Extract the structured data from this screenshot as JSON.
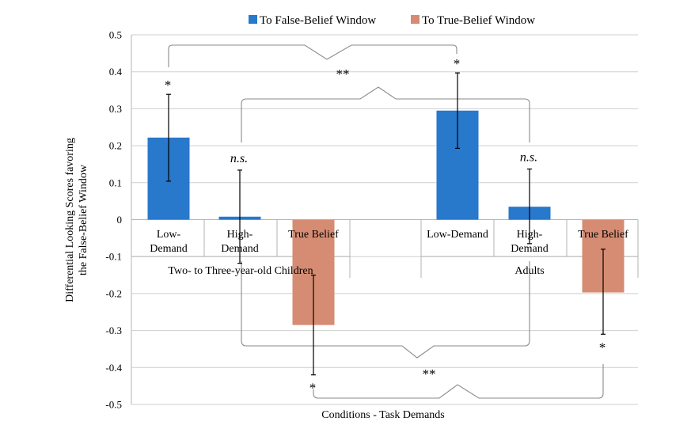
{
  "chart_data": {
    "type": "bar",
    "legend": {
      "placement": "top",
      "entries": [
        {
          "name": "To False-Belief Window",
          "color": "#2878CC"
        },
        {
          "name": "To True-Belief Window",
          "color": "#D58C73"
        }
      ]
    },
    "ylabel_lines": [
      "Differential Looking Scores favoring",
      "the  False-Belief Window"
    ],
    "xlabel": "Conditions  - Task Demands",
    "ylim": [
      -0.5,
      0.5
    ],
    "yticks": [
      "0.5",
      "0.4",
      "0.3",
      "0.2",
      "0.1",
      "0",
      "-0.1",
      "-0.2",
      "-0.3",
      "-0.4",
      "-0.5"
    ],
    "grid": true,
    "groups": [
      {
        "label": "Two- to Three-year-old Children"
      },
      {
        "label": "Adults"
      }
    ],
    "categories": [
      {
        "label_lines": [
          "Low-",
          "Demand"
        ],
        "group": 0
      },
      {
        "label_lines": [
          "High-",
          "Demand"
        ],
        "group": 0
      },
      {
        "label_lines": [
          "True Belief"
        ],
        "group": 0
      },
      {
        "label_lines": [
          "Low-Demand"
        ],
        "group": 1
      },
      {
        "label_lines": [
          "High-",
          "Demand"
        ],
        "group": 1
      },
      {
        "label_lines": [
          "True Belief"
        ],
        "group": 1
      }
    ],
    "bars": [
      {
        "category": 0,
        "series": 0,
        "value": 0.222,
        "err_low": 0.104,
        "err_high": 0.339,
        "annotation": "*",
        "annotation_style": "sig"
      },
      {
        "category": 1,
        "series": 0,
        "value": 0.008,
        "err_low": -0.118,
        "err_high": 0.134,
        "annotation": "n.s.",
        "annotation_style": "ns"
      },
      {
        "category": 2,
        "series": 1,
        "value": -0.285,
        "err_low": -0.42,
        "err_high": -0.15,
        "annotation": "*",
        "annotation_style": "sig"
      },
      {
        "category": 3,
        "series": 0,
        "value": 0.295,
        "err_low": 0.193,
        "err_high": 0.397,
        "annotation": "*",
        "annotation_style": "sig"
      },
      {
        "category": 4,
        "series": 0,
        "value": 0.035,
        "err_low": -0.065,
        "err_high": 0.137,
        "annotation": "n.s.",
        "annotation_style": "ns"
      },
      {
        "category": 5,
        "series": 1,
        "value": -0.197,
        "err_low": -0.31,
        "err_high": -0.08,
        "annotation": "*",
        "annotation_style": "sig"
      }
    ],
    "comparisons": [
      {
        "between": [
          "Low-Demand",
          "Low-Demand"
        ],
        "label": "**"
      },
      {
        "between": [
          "High-Demand",
          "High-Demand"
        ],
        "label": ""
      },
      {
        "between": [
          "True Belief",
          "True Belief"
        ],
        "label": "**"
      }
    ]
  }
}
